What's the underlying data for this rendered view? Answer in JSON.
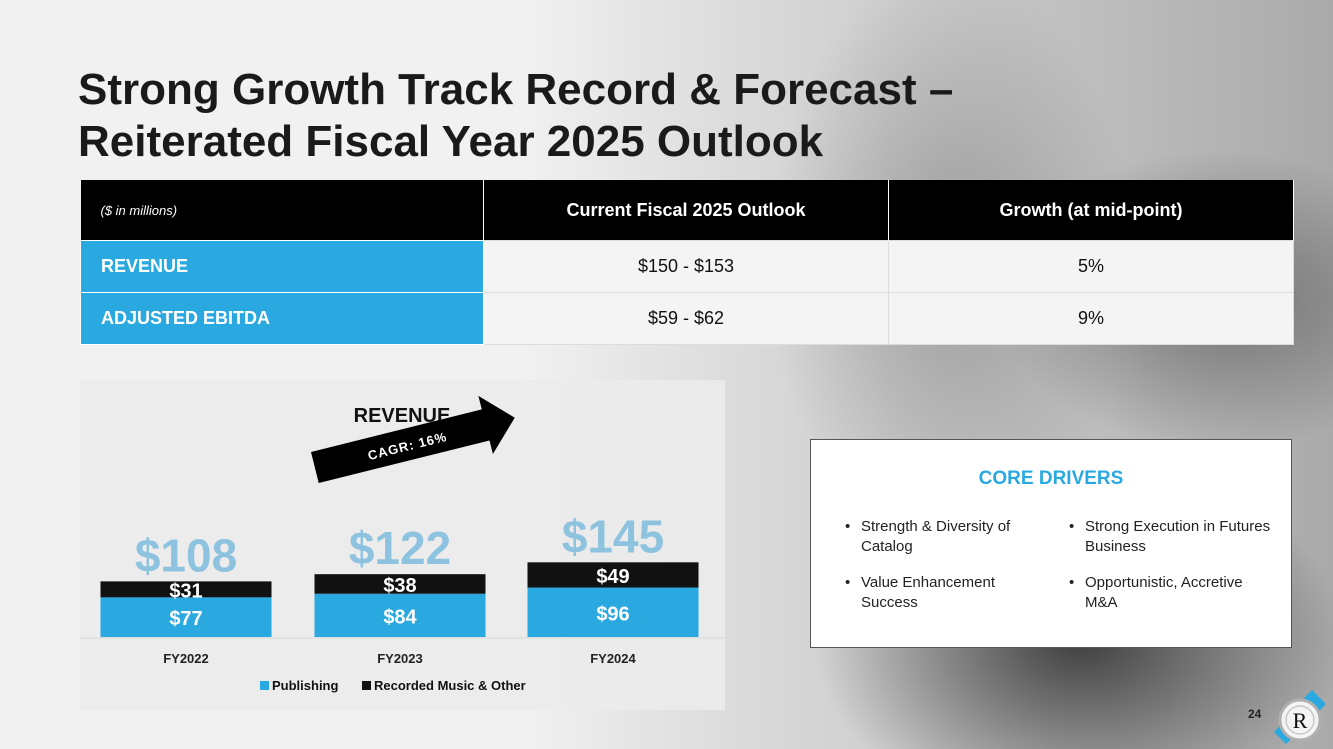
{
  "title": {
    "line1": "Strong Growth Track Record & Forecast –",
    "line2": "Reiterated Fiscal Year 2025 Outlook"
  },
  "outlook_table": {
    "units": "($ in millions)",
    "col1": "Current Fiscal 2025 Outlook",
    "col2": "Growth (at mid-point)",
    "rows": [
      {
        "label": "REVENUE",
        "outlook": "$150 - $153",
        "growth": "5%"
      },
      {
        "label": "ADJUSTED EBITDA",
        "outlook": "$59 - $62",
        "growth": "9%"
      }
    ]
  },
  "chart_data": {
    "type": "bar",
    "stacked": true,
    "title": "REVENUE",
    "categories": [
      "FY2022",
      "FY2023",
      "FY2024"
    ],
    "series": [
      {
        "name": "Publishing",
        "values": [
          77,
          84,
          96
        ],
        "labels": [
          "$77",
          "$84",
          "$96"
        ],
        "color": "#2aa8e0"
      },
      {
        "name": "Recorded Music & Other",
        "values": [
          31,
          38,
          49
        ],
        "labels": [
          "$31",
          "$38",
          "$49"
        ],
        "color": "#111111"
      }
    ],
    "totals": [
      "$108",
      "$122",
      "$145"
    ],
    "annotation": "CAGR: 16%",
    "legend_position": "bottom",
    "grid": false,
    "xlabel": "",
    "ylabel": ""
  },
  "core_drivers": {
    "heading": "CORE DRIVERS",
    "col1": [
      "Strength & Diversity of Catalog",
      "Value Enhancement Success"
    ],
    "col2": [
      "Strong Execution in Futures Business",
      "Opportunistic, Accretive M&A"
    ]
  },
  "page_number": "24",
  "colors": {
    "accent": "#2aa8e0",
    "total_label": "#8ec3df",
    "dark": "#111111"
  }
}
